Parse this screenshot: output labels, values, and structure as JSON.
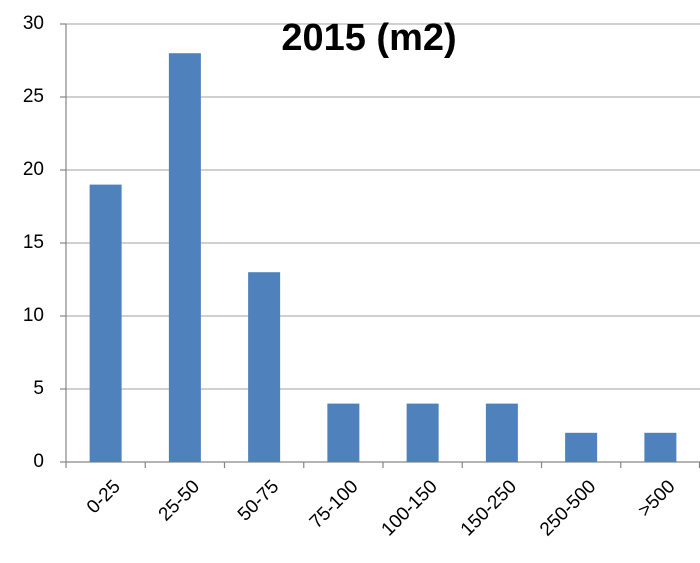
{
  "chart_data": {
    "type": "bar",
    "title": "2015 (m2)",
    "categories": [
      "0-25",
      "25-50",
      "50-75",
      "75-100",
      "100-150",
      "150-250",
      "250-500",
      ">500"
    ],
    "values": [
      19,
      28,
      13,
      4,
      4,
      4,
      2,
      2
    ],
    "color": "#4f81bd",
    "ylim": [
      0,
      30
    ],
    "yticks": [
      0,
      5,
      10,
      15,
      20,
      25,
      30
    ],
    "grid": true
  }
}
